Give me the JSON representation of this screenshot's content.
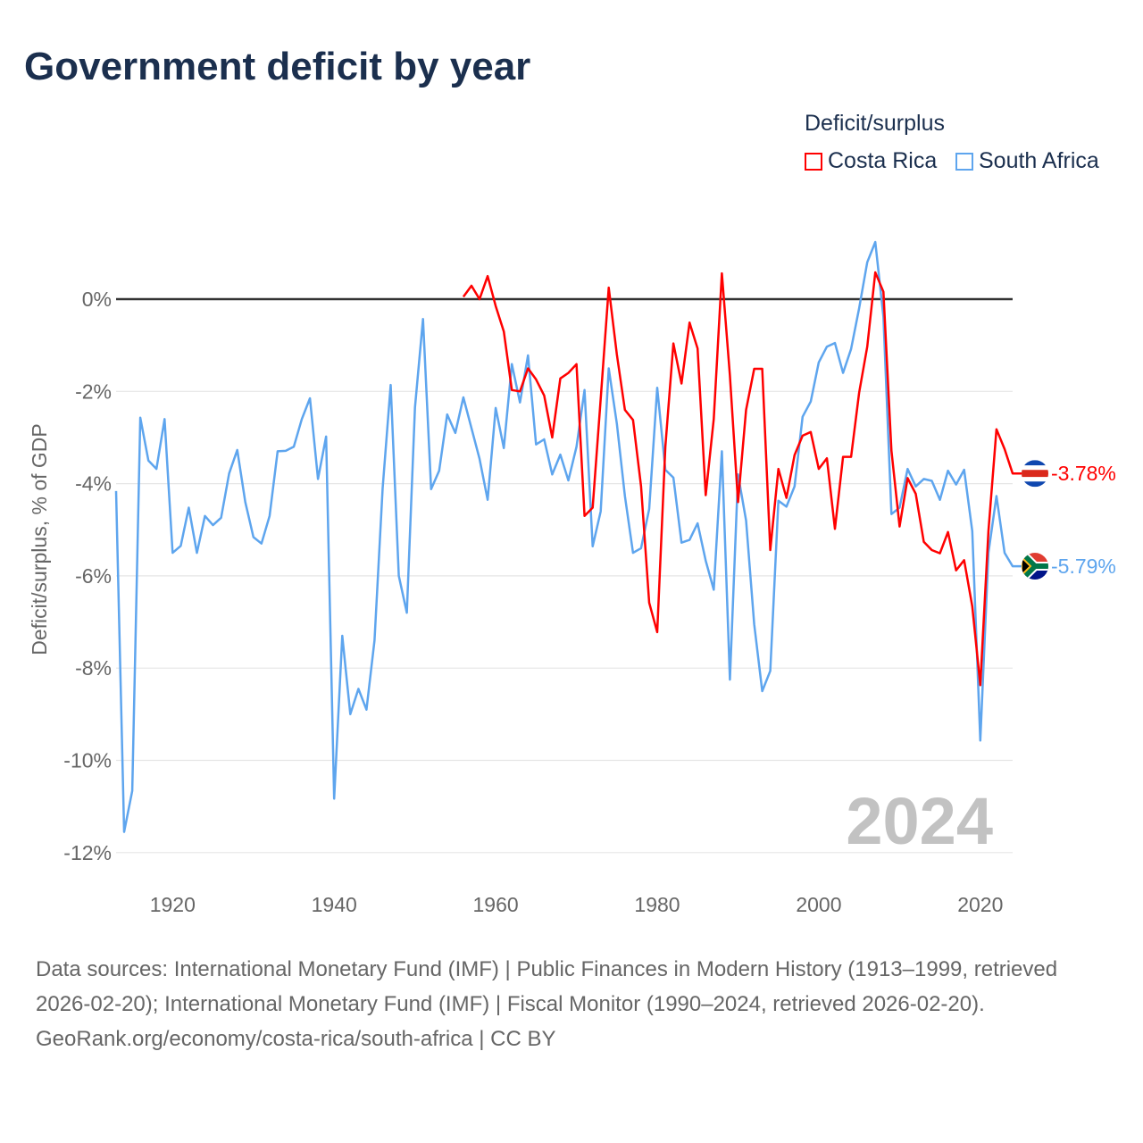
{
  "title": "Government deficit by year",
  "footer": {
    "sources": "Data sources: International Monetary Fund (IMF) | Public Finances in Modern History (1913–1999, retrieved 2026-02-20); International Monetary Fund (IMF) | Fiscal Monitor (1990–2024, retrieved 2026-02-20).",
    "credit": "GeoRank.org/economy/costa-rica/south-africa | CC BY"
  },
  "chart_data": {
    "type": "line",
    "title": "Government deficit by year",
    "ylabel": "Deficit/surplus, % of GDP",
    "xlabel": "",
    "legend_title": "Deficit/surplus",
    "legend_position": "top-right",
    "year_watermark": "2024",
    "xlim": [
      1913,
      2024
    ],
    "ylim": [
      -12.5,
      1.5
    ],
    "x_ticks": [
      1920,
      1940,
      1960,
      1980,
      2000,
      2020
    ],
    "x_tick_labels": [
      "1920",
      "1940",
      "1960",
      "1980",
      "2000",
      "2020"
    ],
    "y_ticks": [
      0,
      -2,
      -4,
      -6,
      -8,
      -10,
      -12
    ],
    "y_tick_labels": [
      "0%",
      "-2%",
      "-4%",
      "-6%",
      "-8%",
      "-10%",
      "-12%"
    ],
    "grid": true,
    "series": [
      {
        "name": "Costa Rica",
        "color": "#ff0000",
        "end_label": "-3.78%",
        "start_year": 1956,
        "values": [
          0.05,
          0.29,
          0,
          0.5,
          -0.15,
          -0.7,
          -1.97,
          -2.0,
          -1.5,
          -1.74,
          -2.09,
          -3.0,
          -1.72,
          -1.6,
          -1.41,
          -4.7,
          -4.52,
          -2.16,
          0.25,
          -1.2,
          -2.4,
          -2.62,
          -4.06,
          -6.58,
          -7.22,
          -3.2,
          -0.96,
          -1.83,
          -0.51,
          -1.07,
          -4.25,
          -2.6,
          0.56,
          -1.66,
          -4.4,
          -2.4,
          -1.51,
          -1.51,
          -5.44,
          -3.68,
          -4.31,
          -3.38,
          -2.96,
          -2.88,
          -3.68,
          -3.45,
          -4.98,
          -3.42,
          -3.42,
          -2.03,
          -1.03,
          0.58,
          0.16,
          -3.29,
          -4.93,
          -3.88,
          -4.22,
          -5.26,
          -5.44,
          -5.51,
          -5.05,
          -5.88,
          -5.66,
          -6.66,
          -8.37,
          -5.03,
          -2.82,
          -3.25,
          -3.78
        ]
      },
      {
        "name": "South Africa",
        "color": "#5ea5ee",
        "end_label": "-5.79%",
        "start_year": 1913,
        "values": [
          -4.16,
          -11.55,
          -10.66,
          -2.57,
          -3.5,
          -3.68,
          -2.6,
          -5.5,
          -5.35,
          -4.52,
          -5.5,
          -4.7,
          -4.9,
          -4.74,
          -3.78,
          -3.27,
          -4.4,
          -5.16,
          -5.3,
          -4.7,
          -3.3,
          -3.29,
          -3.2,
          -2.6,
          -2.15,
          -3.9,
          -2.98,
          -10.83,
          -7.3,
          -9.0,
          -8.45,
          -8.9,
          -7.4,
          -4.1,
          -1.86,
          -6.0,
          -6.8,
          -2.35,
          -0.43,
          -4.12,
          -3.72,
          -2.5,
          -2.9,
          -2.13,
          -2.8,
          -3.46,
          -4.35,
          -2.36,
          -3.23,
          -1.41,
          -2.24,
          -1.22,
          -3.15,
          -3.04,
          -3.8,
          -3.37,
          -3.93,
          -3.2,
          -1.97,
          -5.36,
          -4.6,
          -1.5,
          -2.7,
          -4.27,
          -5.5,
          -5.4,
          -4.55,
          -1.92,
          -3.7,
          -3.87,
          -5.28,
          -5.22,
          -4.86,
          -5.67,
          -6.3,
          -3.3,
          -8.25,
          -3.8,
          -4.8,
          -7.05,
          -8.5,
          -8.06,
          -4.37,
          -4.5,
          -4.06,
          -2.55,
          -2.22,
          -1.37,
          -1.03,
          -0.95,
          -1.6,
          -1.08,
          -0.2,
          0.8,
          1.24,
          -0.38,
          -4.66,
          -4.52,
          -3.68,
          -4.06,
          -3.9,
          -3.94,
          -4.35,
          -3.72,
          -4.02,
          -3.7,
          -5.03,
          -9.57,
          -5.5,
          -4.27,
          -5.5,
          -5.79
        ]
      }
    ]
  }
}
